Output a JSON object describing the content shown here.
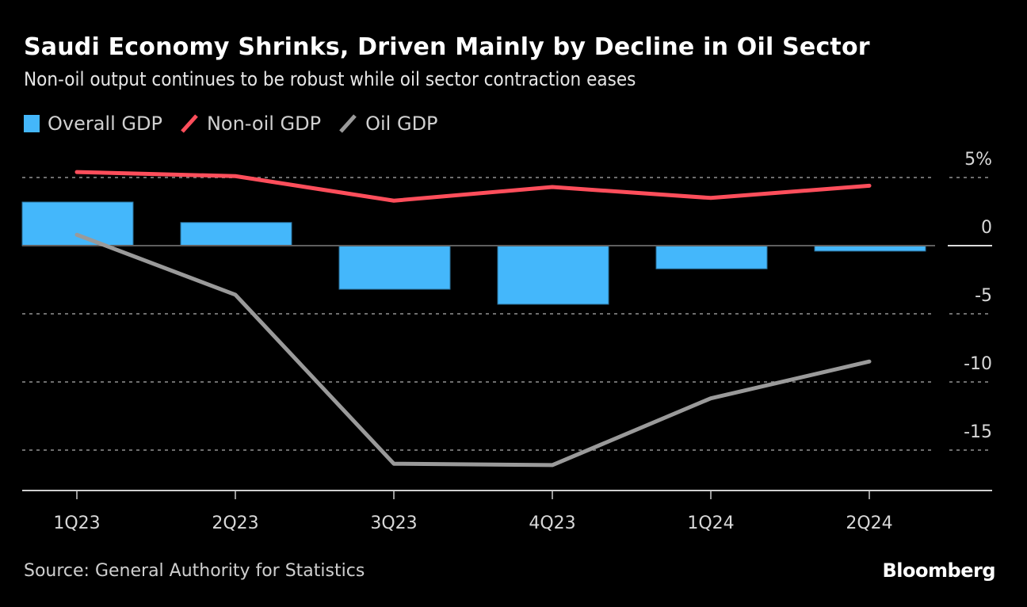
{
  "header": {
    "title": "Saudi Economy Shrinks, Driven Mainly by Decline in Oil Sector",
    "subtitle": "Non-oil output continues to be robust while oil sector contraction eases"
  },
  "legend": [
    {
      "label": "Overall GDP",
      "type": "bar",
      "color": "#44b7fb"
    },
    {
      "label": "Non-oil GDP",
      "type": "line",
      "color": "#ff4e5b"
    },
    {
      "label": "Oil GDP",
      "type": "line",
      "color": "#9a9a9a"
    }
  ],
  "footer": {
    "source": "Source: General Authority for Statistics",
    "brand": "Bloomberg"
  },
  "chart_data": {
    "type": "bar",
    "title": "Saudi Economy Shrinks, Driven Mainly by Decline in Oil Sector",
    "subtitle": "Non-oil output continues to be robust while oil sector contraction eases",
    "xlabel": "",
    "ylabel": "",
    "categories": [
      "1Q23",
      "2Q23",
      "3Q23",
      "4Q23",
      "1Q24",
      "2Q24"
    ],
    "series": [
      {
        "name": "Overall GDP",
        "type": "bar",
        "color": "#44b7fb",
        "values": [
          3.2,
          1.7,
          -3.2,
          -4.3,
          -1.7,
          -0.4
        ]
      },
      {
        "name": "Non-oil GDP",
        "type": "line",
        "color": "#ff4e5b",
        "values": [
          5.4,
          5.1,
          3.3,
          4.3,
          3.5,
          4.4
        ]
      },
      {
        "name": "Oil GDP",
        "type": "line",
        "color": "#9a9a9a",
        "values": [
          0.8,
          -3.6,
          -16.0,
          -16.1,
          -11.2,
          -8.5
        ]
      }
    ],
    "ylim": [
      -18,
      7
    ],
    "yticks": [
      5,
      0,
      -5,
      -10,
      -15
    ],
    "ytick_labels": [
      "5%",
      "0",
      "-5",
      "-10",
      "-15"
    ],
    "y_axis_position": "right",
    "grid": true,
    "legend_position": "top-left"
  }
}
